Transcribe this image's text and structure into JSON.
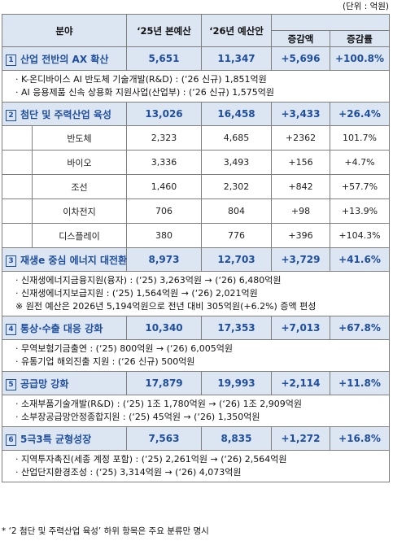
{
  "unit": "(단위 : 억원)",
  "headers": {
    "category": "분야",
    "y2025": "‘25년 본예산",
    "y2026": "‘26년 예산안",
    "change_amount": "증감액",
    "change_rate": "증감률"
  },
  "groups": [
    {
      "num": "1",
      "name": "산업 전반의 AX 확산",
      "y2025": "5,651",
      "y2026": "11,347",
      "change": "+5,696",
      "rate": "+100.8%",
      "details": [
        "· K-온디바이스 AI 반도체 기술개발(R&D) : (‘26 신규) 1,851억원",
        "· AI 응용제품 신속 상용화 지원사업(산업부) : (‘26 신규) 1,575억원"
      ]
    },
    {
      "num": "2",
      "name": "첨단 및 주력산업 육성",
      "y2025": "13,026",
      "y2026": "16,458",
      "change": "+3,433",
      "rate": "+26.4%",
      "subs": [
        {
          "name": "반도체",
          "y2025": "2,323",
          "y2026": "4,685",
          "change": "+2362",
          "rate": "101.7%"
        },
        {
          "name": "바이오",
          "y2025": "3,336",
          "y2026": "3,493",
          "change": "+156",
          "rate": "+4.7%"
        },
        {
          "name": "조선",
          "y2025": "1,460",
          "y2026": "2,302",
          "change": "+842",
          "rate": "+57.7%"
        },
        {
          "name": "이차전지",
          "y2025": "706",
          "y2026": "804",
          "change": "+98",
          "rate": "+13.9%"
        },
        {
          "name": "디스플레이",
          "y2025": "380",
          "y2026": "776",
          "change": "+396",
          "rate": "+104.3%"
        }
      ]
    },
    {
      "num": "3",
      "name": "재생e 중심 에너지 대전환",
      "y2025": "8,973",
      "y2026": "12,703",
      "change": "+3,729",
      "rate": "+41.6%",
      "details": [
        "· 신재생에너지금융지원(융자) : (‘25) 3,263억원 → (‘26) 6,480억원",
        "· 신재생에너지보급지원 : (‘25) 1,564억원 → (‘26) 2,021억원",
        "※ 원전 예산은 2026년 5,194억원으로 전년 대비 305억원(+6.2%) 증액 편성"
      ]
    },
    {
      "num": "4",
      "name": "통상·수출 대응 강화",
      "y2025": "10,340",
      "y2026": "17,353",
      "change": "+7,013",
      "rate": "+67.8%",
      "details": [
        "· 무역보험기금출연 : (‘25) 800억원 → (‘26) 6,005억원",
        "· 유통기업 해외진출 지원 : (‘26 신규) 500억원"
      ]
    },
    {
      "num": "5",
      "name": "공급망 강화",
      "y2025": "17,879",
      "y2026": "19,993",
      "change": "+2,114",
      "rate": "+11.8%",
      "details": [
        "· 소재부품기술개발(R&D) : (‘25) 1조 1,780억원 → (‘26) 1조 2,909억원",
        "· 소부장공급망안정종합지원 : (‘25) 45억원 → (‘26) 1,350억원"
      ]
    },
    {
      "num": "6",
      "name": "5극3특 균형성장",
      "y2025": "7,563",
      "y2026": "8,835",
      "change": "+1,272",
      "rate": "+16.8%",
      "details": [
        "· 지역투자촉진(세종 계정 포함) : (‘25) 2,261억원 → (‘26) 2,564억원",
        "· 산업단지환경조성 : (‘25) 3,314억원 → (‘26) 4,073억원"
      ]
    }
  ],
  "footnote": "* ‘2 첨단 및 주력산업 육성’ 하위 항목은 주요 분류만 명시"
}
